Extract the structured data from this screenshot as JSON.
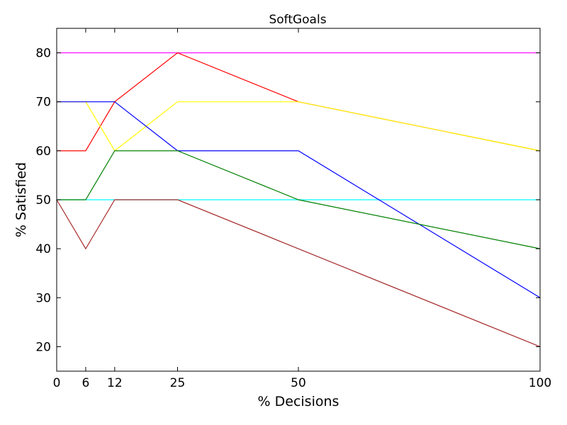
{
  "chart_data": {
    "type": "line",
    "title": "SoftGoals",
    "xlabel": "% Decisions",
    "ylabel": "% Satisfied",
    "xlim": [
      0,
      100
    ],
    "ylim": [
      15,
      85
    ],
    "x_ticks": [
      0,
      6,
      12,
      25,
      50,
      100
    ],
    "y_ticks": [
      20,
      30,
      40,
      50,
      60,
      70,
      80
    ],
    "grid": false,
    "x": [
      0,
      6,
      12,
      25,
      50,
      100
    ],
    "series": [
      {
        "color": "#ff00ff",
        "values": [
          80,
          80,
          80,
          80,
          80,
          80
        ]
      },
      {
        "color": "#00ffff",
        "values": [
          50,
          50,
          50,
          50,
          50,
          50
        ]
      },
      {
        "color": "#ff0000",
        "values": [
          60,
          60,
          70,
          80,
          70,
          60
        ]
      },
      {
        "color": "#ffff00",
        "values": [
          70,
          70,
          60,
          70,
          70,
          60
        ]
      },
      {
        "color": "#0000ff",
        "values": [
          70,
          70,
          70,
          60,
          60,
          30
        ]
      },
      {
        "color": "#008000",
        "values": [
          50,
          50,
          60,
          60,
          50,
          40
        ]
      },
      {
        "color": "#a52a2a",
        "values": [
          50,
          40,
          50,
          50,
          40,
          20
        ]
      }
    ]
  }
}
